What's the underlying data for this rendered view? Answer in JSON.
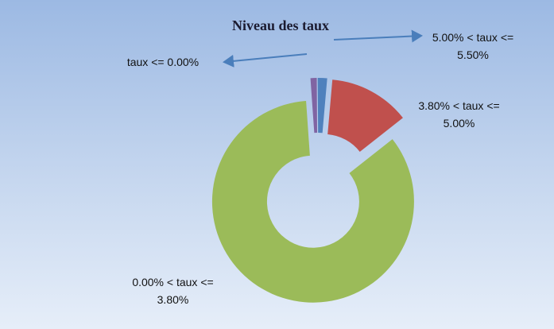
{
  "chart_data": {
    "type": "donut",
    "title": "Niveau des taux",
    "categories": [
      "taux <= 0.00%",
      "5.00% < taux <= 5.50%",
      "3.80% < taux <= 5.00%",
      "0.00% < taux <= 3.80%"
    ],
    "values": [
      1,
      1.5,
      13,
      84.5
    ],
    "colors": [
      "#8064a2",
      "#4f81bd",
      "#c0504d",
      "#9bbb59"
    ]
  }
}
